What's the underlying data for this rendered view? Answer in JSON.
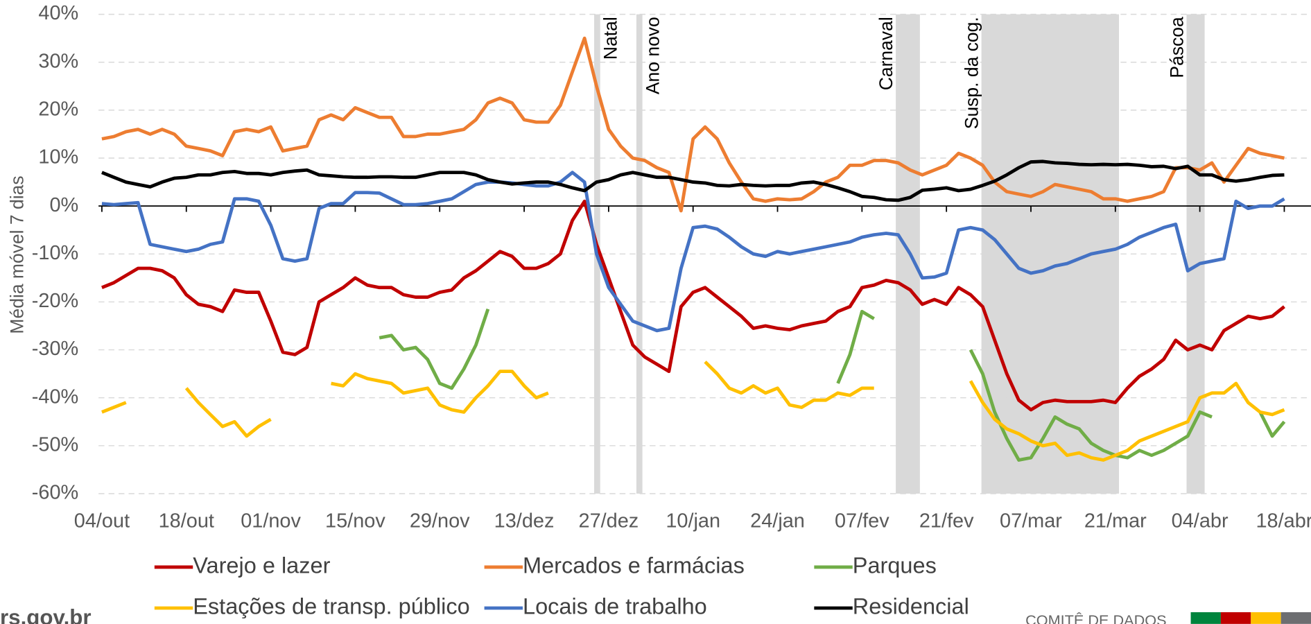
{
  "chart_data": {
    "type": "line",
    "y_label": "Média móvel 7 dias",
    "categories": [
      "04/out",
      null,
      null,
      null,
      null,
      null,
      null,
      "18/out",
      null,
      null,
      null,
      null,
      null,
      null,
      "01/nov",
      null,
      null,
      null,
      null,
      null,
      null,
      "15/nov",
      null,
      null,
      null,
      null,
      null,
      null,
      "29/nov",
      null,
      null,
      null,
      null,
      null,
      null,
      "13/dez",
      null,
      null,
      null,
      null,
      null,
      null,
      "27/dez",
      null,
      null,
      null,
      null,
      null,
      null,
      "10/jan",
      null,
      null,
      null,
      null,
      null,
      null,
      "24/jan",
      null,
      null,
      null,
      null,
      null,
      null,
      "07/fev",
      null,
      null,
      null,
      null,
      null,
      null,
      "21/fev",
      null,
      null,
      null,
      null,
      null,
      null,
      "07/mar",
      null,
      null,
      null,
      null,
      null,
      null,
      "21/mar",
      null,
      null,
      null,
      null,
      null,
      null,
      "04/abr",
      null,
      null,
      null,
      null,
      null,
      null,
      "18/abr"
    ],
    "series": [
      {
        "name": "Varejo e lazer",
        "color": "#c00000",
        "values": [
          -17,
          -16,
          -14.5,
          -13,
          -13,
          -13.5,
          -15,
          -18.5,
          -20.5,
          -21,
          -22,
          -17.5,
          -18,
          -18,
          -24,
          -30.5,
          -31,
          -29.5,
          -20,
          -18.5,
          -17,
          -15,
          -16.5,
          -17,
          -17,
          -18.5,
          -19,
          -19,
          -18,
          -17.5,
          -15,
          -13.5,
          -11.5,
          -9.5,
          -10.5,
          -13,
          -13,
          -12,
          -10,
          -3,
          1,
          -8,
          -15,
          -22,
          -29,
          -31.5,
          -33,
          -34.5,
          -21,
          -18,
          -17,
          -19,
          -21,
          -23,
          -25.5,
          -25,
          -25.5,
          -25.8,
          -25,
          -24.5,
          -24,
          -22,
          -21,
          -17,
          -16.5,
          -15.5,
          -16,
          -17.5,
          -20.5,
          -19.5,
          -20.5,
          -17,
          -18.5,
          -21,
          -28,
          -35,
          -40.5,
          -42.5,
          -41,
          -40.5,
          -40.8,
          -40.8,
          -40.8,
          -40.5,
          -41,
          -38,
          -35.5,
          -34,
          -32,
          -28,
          -30,
          -29,
          -30,
          -26,
          -24.5,
          -23,
          -23.5,
          -23,
          -21
        ]
      },
      {
        "name": "Mercados e farmácias",
        "color": "#ed7d31",
        "values": [
          14,
          14.5,
          15.5,
          16,
          15,
          16,
          15,
          12.5,
          12,
          11.5,
          10.5,
          15.5,
          16,
          15.5,
          16.5,
          11.5,
          12,
          12.5,
          18,
          19,
          18,
          20.5,
          19.5,
          18.5,
          18.5,
          14.5,
          14.5,
          15,
          15,
          15.5,
          16,
          18,
          21.5,
          22.5,
          21.5,
          18,
          17.5,
          17.5,
          21,
          28,
          35,
          25,
          16,
          12.5,
          10,
          9.5,
          8,
          7,
          -1,
          14,
          16.5,
          14,
          9,
          5,
          1.5,
          1,
          1.5,
          1.3,
          1.5,
          3,
          5,
          6,
          8.5,
          8.5,
          9.5,
          9.5,
          9,
          7.5,
          6.5,
          7.5,
          8.5,
          11,
          10,
          8.5,
          5,
          3,
          2.5,
          2,
          3,
          4.5,
          4,
          3.5,
          3,
          1.5,
          1.5,
          1,
          1.5,
          2,
          3,
          8,
          8,
          7.5,
          9,
          5,
          8.5,
          12,
          11,
          10.5,
          10
        ]
      },
      {
        "name": "Parques",
        "color": "#70ad47",
        "values": [
          null,
          null,
          null,
          null,
          null,
          null,
          null,
          null,
          null,
          null,
          null,
          null,
          null,
          null,
          null,
          null,
          null,
          null,
          null,
          null,
          null,
          null,
          null,
          -27.5,
          -27,
          -30,
          -29.5,
          -32,
          -37,
          -38,
          -34,
          -29,
          -21.5,
          null,
          null,
          null,
          null,
          null,
          null,
          null,
          null,
          null,
          null,
          null,
          null,
          null,
          null,
          null,
          null,
          null,
          null,
          null,
          null,
          null,
          null,
          null,
          null,
          null,
          null,
          null,
          null,
          -37,
          -31,
          -22,
          -23.5,
          null,
          null,
          null,
          null,
          null,
          null,
          null,
          -30,
          -35,
          -43,
          -48.5,
          -53,
          -52.5,
          -48.5,
          -44,
          -45.5,
          -46.5,
          -49.5,
          -51,
          -52,
          -52.5,
          -51,
          -52,
          -51,
          -49.5,
          -48,
          -43,
          -44,
          null,
          null,
          null,
          -43,
          -48,
          -45
        ]
      },
      {
        "name": "Estações de transp. público",
        "color": "#ffc000",
        "values": [
          -43,
          -42,
          -41,
          null,
          null,
          null,
          null,
          -38,
          -41,
          -43.5,
          -46,
          -45,
          -48,
          -46,
          -44.5,
          null,
          null,
          null,
          null,
          -37,
          -37.5,
          -35,
          -36,
          -36.5,
          -37,
          -39,
          -38.5,
          -38,
          -41.5,
          -42.5,
          -43,
          -40,
          -37.5,
          -34.5,
          -34.5,
          -37.5,
          -40,
          -39,
          null,
          null,
          null,
          null,
          null,
          null,
          null,
          null,
          null,
          null,
          null,
          null,
          -32.5,
          -35,
          -38,
          -39,
          -37.5,
          -39,
          -38,
          -41.5,
          -42,
          -40.5,
          -40.5,
          -39,
          -39.5,
          -38,
          -38,
          null,
          null,
          null,
          null,
          null,
          null,
          null,
          -36.5,
          -41,
          -44.5,
          -46.5,
          -47.5,
          -49,
          -50,
          -49.5,
          -52,
          -51.5,
          -52.5,
          -53,
          -52,
          -51,
          -49,
          -48,
          -47,
          -46,
          -45,
          -40,
          -39,
          -39,
          -37,
          -41,
          -43,
          -43.5,
          -42.5
        ]
      },
      {
        "name": "Locais de trabalho",
        "color": "#4472c4",
        "values": [
          0.5,
          0.3,
          0.5,
          0.7,
          -8,
          -8.5,
          -9,
          -9.5,
          -9,
          -8,
          -7.5,
          1.5,
          1.5,
          1,
          -4,
          -11,
          -11.5,
          -11,
          -0.5,
          0.5,
          0.5,
          2.8,
          2.8,
          2.7,
          1.5,
          0.3,
          0.3,
          0.5,
          1,
          1.5,
          3,
          4.5,
          5,
          5,
          4.8,
          4.5,
          4.2,
          4.2,
          5,
          7,
          5,
          -10,
          -17,
          -20.5,
          -24,
          -25,
          -26,
          -25.5,
          -13,
          -4.5,
          -4.2,
          -4.8,
          -6.5,
          -8.5,
          -10,
          -10.5,
          -9.5,
          -10,
          -9.5,
          -9,
          -8.5,
          -8,
          -7.5,
          -6.5,
          -6,
          -5.7,
          -6,
          -10,
          -15,
          -14.8,
          -14,
          -5,
          -4.5,
          -5,
          -7,
          -10,
          -13,
          -14,
          -13.5,
          -12.5,
          -12,
          -11,
          -10,
          -9.5,
          -9,
          -8,
          -6.5,
          -5.5,
          -4.5,
          -3.8,
          -13.5,
          -12,
          -11.5,
          -11,
          1,
          -0.5,
          0,
          0,
          1.5
        ]
      },
      {
        "name": "Residencial",
        "color": "#000000",
        "values": [
          7,
          6,
          5,
          4.5,
          4,
          5,
          5.8,
          6,
          6.5,
          6.5,
          7,
          7.2,
          6.8,
          6.8,
          6.5,
          7,
          7.3,
          7.5,
          6.5,
          6.3,
          6.1,
          6,
          6,
          6.1,
          6.1,
          6,
          6,
          6.5,
          7,
          7,
          7,
          6.5,
          5.5,
          5,
          4.6,
          4.8,
          5,
          5,
          4.5,
          3.8,
          3.2,
          5,
          5.5,
          6.5,
          7,
          6.5,
          6,
          6,
          5.5,
          5,
          4.8,
          4.3,
          4.2,
          4.5,
          4.3,
          4.2,
          4.3,
          4.3,
          4.8,
          5,
          4.5,
          3.8,
          3,
          2,
          1.8,
          1.3,
          1.2,
          1.8,
          3.3,
          3.5,
          3.8,
          3.2,
          3.5,
          4.3,
          5.2,
          6.5,
          8,
          9.2,
          9.3,
          9,
          8.9,
          8.7,
          8.6,
          8.7,
          8.6,
          8.7,
          8.5,
          8.2,
          8.3,
          7.8,
          8.3,
          6.5,
          6.5,
          5.5,
          5.2,
          5.5,
          6,
          6.4,
          6.5
        ]
      }
    ],
    "ylim": [
      -60,
      40
    ],
    "yticks": [
      {
        "value": -60,
        "label": "-60%"
      },
      {
        "value": -50,
        "label": "-50%"
      },
      {
        "value": -40,
        "label": "-40%"
      },
      {
        "value": -30,
        "label": "-30%"
      },
      {
        "value": -20,
        "label": "-20%"
      },
      {
        "value": -10,
        "label": "-10%"
      },
      {
        "value": 0,
        "label": "0%"
      },
      {
        "value": 10,
        "label": "10%"
      },
      {
        "value": 20,
        "label": "20%"
      },
      {
        "value": 30,
        "label": "30%"
      },
      {
        "value": 40,
        "label": "40%"
      }
    ],
    "grid": true,
    "legend": "bottom",
    "bands": [
      {
        "label": "Natal",
        "x_start": 40.8,
        "x_end": 41.3
      },
      {
        "label": "Ano novo",
        "x_start": 44.3,
        "x_end": 44.8
      },
      {
        "label": "Carnaval",
        "x_start": 65.8,
        "x_end": 67.8
      },
      {
        "label": "Susp. da cog.",
        "x_start": 72.9,
        "x_end": 84.3
      },
      {
        "label": "Páscoa",
        "x_start": 89.9,
        "x_end": 91.4
      }
    ]
  },
  "footer": {
    "site": "rs.gov.br",
    "committee": "COMITÊ DE DADOS"
  }
}
